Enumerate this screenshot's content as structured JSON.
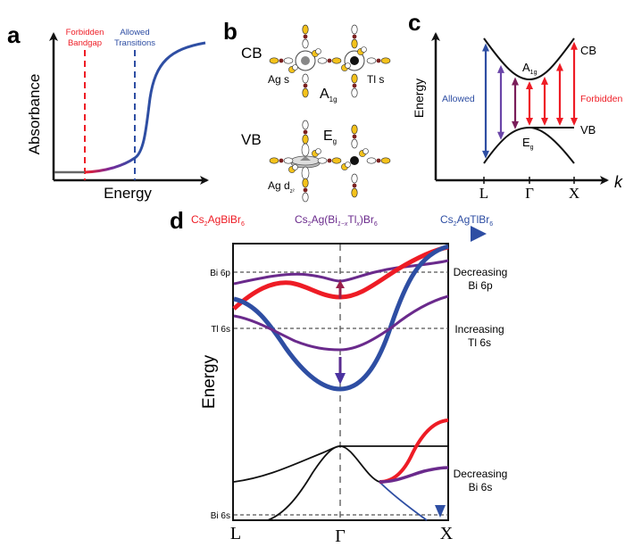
{
  "colors": {
    "red": "#ee1c25",
    "blue": "#2e4ea3",
    "purple": "#6a2a8c",
    "dark_purple": "#7a1d5a",
    "violet": "#6a45a8",
    "black": "#111111",
    "gold": "#f4c21b",
    "maroon": "#7a1f1f",
    "grey": "#888888",
    "dash": "#555555"
  },
  "panel_a": {
    "label": "a",
    "ylabel": "Absorbance",
    "xlabel": "Energy",
    "markers": [
      {
        "line1": "Forbidden",
        "line2": "Bandgap",
        "color": "red"
      },
      {
        "line1": "Allowed",
        "line2": "Transitions",
        "color": "blue"
      }
    ]
  },
  "panel_b": {
    "label": "b",
    "rows": [
      {
        "band": "CB",
        "left_label": "Ag s",
        "right_label": "Tl s",
        "symmetry": "A",
        "symmetry_sub": "1g"
      },
      {
        "band": "VB",
        "left_label": "Ag d",
        "left_sub": "z²",
        "symmetry": "E",
        "symmetry_sub": "g"
      }
    ]
  },
  "panel_c": {
    "label": "c",
    "ylabel": "Energy",
    "xlabel": "k",
    "ticks": [
      "L",
      "Γ",
      "X"
    ],
    "band_labels": {
      "cb": "CB",
      "vb": "VB",
      "cb_sym": "A",
      "cb_sym_sub": "1g",
      "vb_sym": "E",
      "vb_sym_sub": "g"
    },
    "annotations": {
      "allowed": "Allowed",
      "forbidden": "Forbidden"
    },
    "transitions": [
      {
        "k": "L",
        "type": "allowed",
        "color": "blue"
      },
      {
        "k": "between L and Γ (near L)",
        "type": "partially allowed",
        "color": "violet"
      },
      {
        "k": "between L and Γ (near Γ)",
        "type": "partially allowed",
        "color": "dark_purple"
      },
      {
        "k": "Γ",
        "type": "forbidden",
        "color": "red"
      },
      {
        "k": "between Γ and X",
        "type": "forbidden",
        "color": "red"
      },
      {
        "k": "between Γ and X (near X)",
        "type": "forbidden",
        "color": "red"
      },
      {
        "k": "X",
        "type": "forbidden",
        "color": "red"
      }
    ]
  },
  "panel_d": {
    "label": "d",
    "composition_arrow": {
      "start": {
        "base": "Cs",
        "parts": [
          [
            "2",
            "sub"
          ],
          [
            "AgBiBr",
            ""
          ],
          [
            "6",
            "sub"
          ]
        ],
        "color": "red"
      },
      "middle": {
        "color": "purple"
      },
      "end": {
        "color": "blue"
      }
    },
    "compositions": {
      "start": [
        "Cs",
        "2",
        "AgBiBr",
        "6"
      ],
      "middle": [
        "Cs",
        "2",
        "Ag(Bi",
        "1−x",
        "Tl",
        "x",
        ")Br",
        "6"
      ],
      "end": [
        "Cs",
        "2",
        "AgTlBr",
        "6"
      ]
    },
    "ylabel": "Energy",
    "ticks": [
      "L",
      "Γ",
      "X"
    ],
    "levels": [
      {
        "name": "Bi 6p"
      },
      {
        "name": "Tl 6s"
      },
      {
        "name": "Bi 6s"
      }
    ],
    "right_notes": [
      {
        "line1": "Decreasing",
        "line2": "Bi 6p"
      },
      {
        "line1": "Increasing",
        "line2": "Tl 6s"
      },
      {
        "line1": "Decreasing",
        "line2": "Bi 6s"
      }
    ]
  }
}
